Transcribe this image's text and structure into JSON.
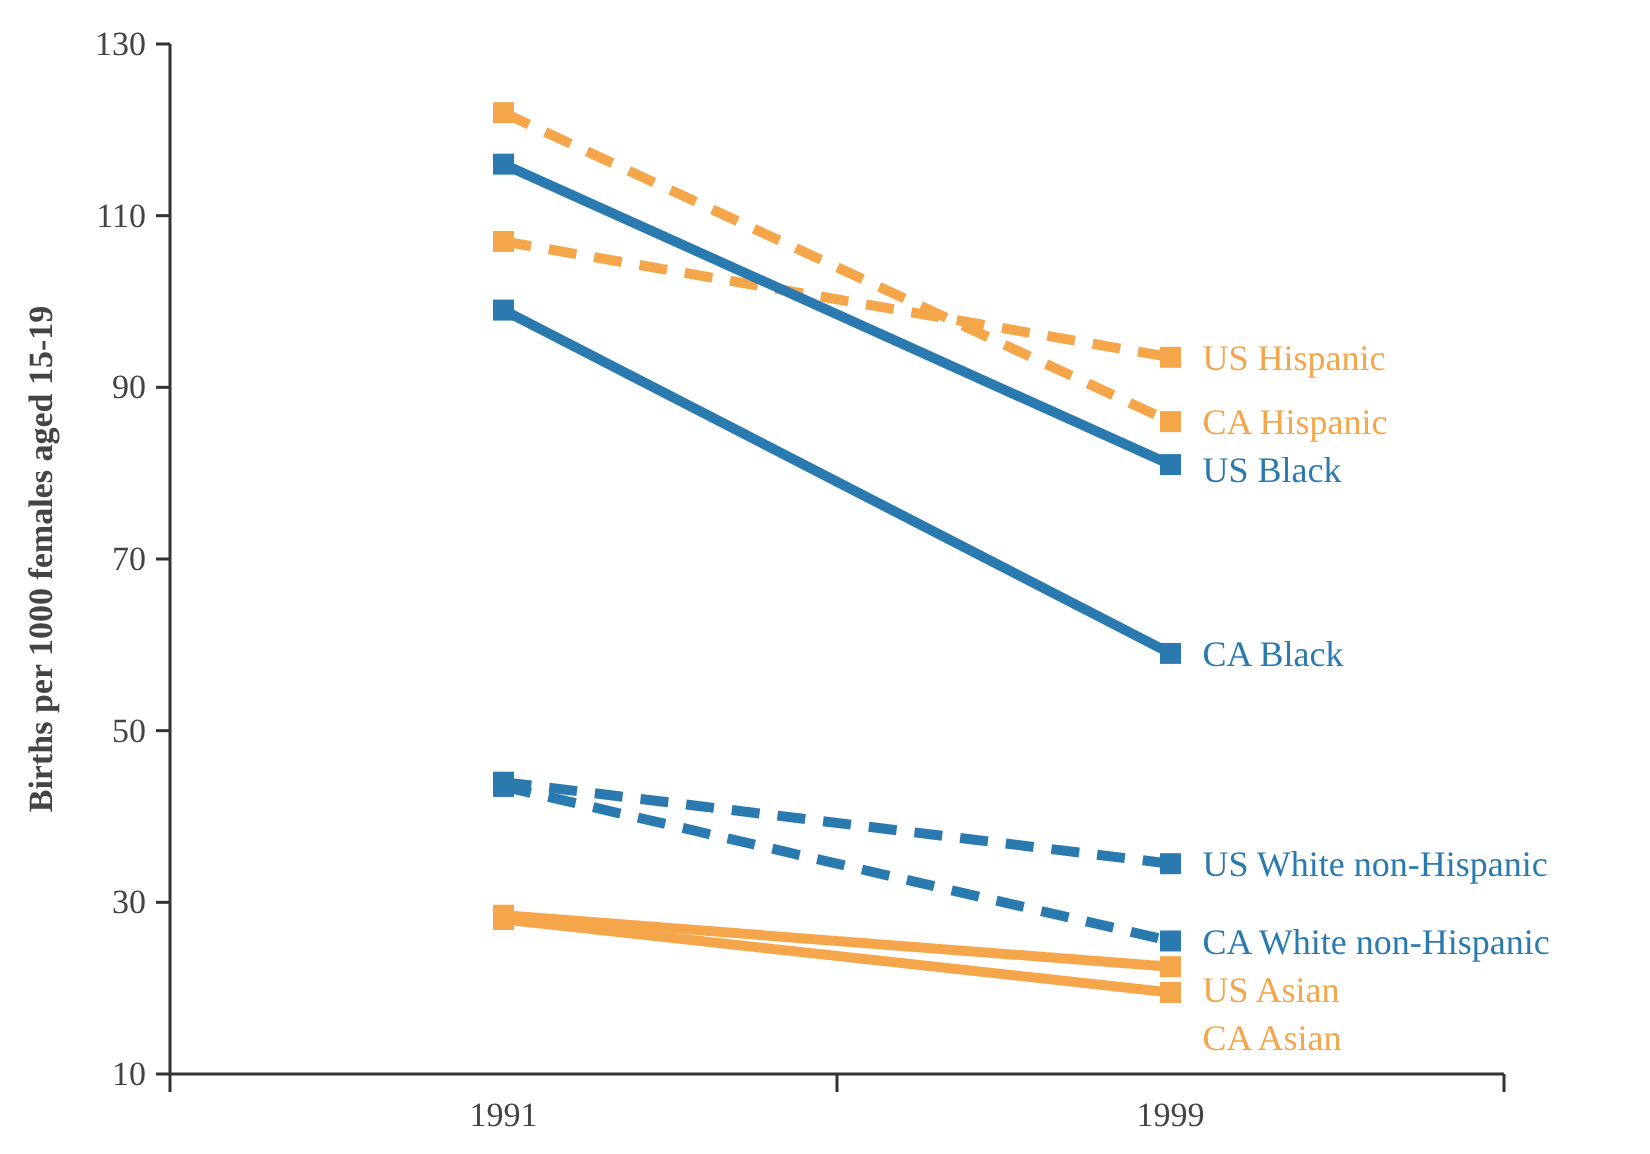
{
  "chart_data": {
    "type": "line",
    "ylabel": "Births per 1000 females aged 15-19",
    "categories": [
      "1991",
      "1999"
    ],
    "ylim": [
      10,
      130
    ],
    "yticks": [
      10,
      30,
      50,
      70,
      90,
      110,
      130
    ],
    "grid": false,
    "marker": "square",
    "series": [
      {
        "name": "US Hispanic",
        "color": "#f5a54a",
        "line_style": "dashed",
        "values": [
          107,
          93.5
        ]
      },
      {
        "name": "CA Hispanic",
        "color": "#f5a54a",
        "line_style": "dashed",
        "values": [
          122,
          86
        ]
      },
      {
        "name": "US Black",
        "color": "#2a7ab0",
        "line_style": "solid",
        "values": [
          116,
          81
        ]
      },
      {
        "name": "CA Black",
        "color": "#2a7ab0",
        "line_style": "solid",
        "values": [
          99,
          59
        ]
      },
      {
        "name": "US White non-Hispanic",
        "color": "#2a7ab0",
        "line_style": "dashed",
        "values": [
          44,
          34.5
        ]
      },
      {
        "name": "CA White non-Hispanic",
        "color": "#2a7ab0",
        "line_style": "dashed",
        "values": [
          43.5,
          25.5
        ]
      },
      {
        "name": "US Asian",
        "color": "#f5a54a",
        "line_style": "solid",
        "values": [
          28.5,
          22.5
        ]
      },
      {
        "name": "CA Asian",
        "color": "#f5a54a",
        "line_style": "solid",
        "values": [
          28,
          19.5
        ]
      }
    ]
  }
}
